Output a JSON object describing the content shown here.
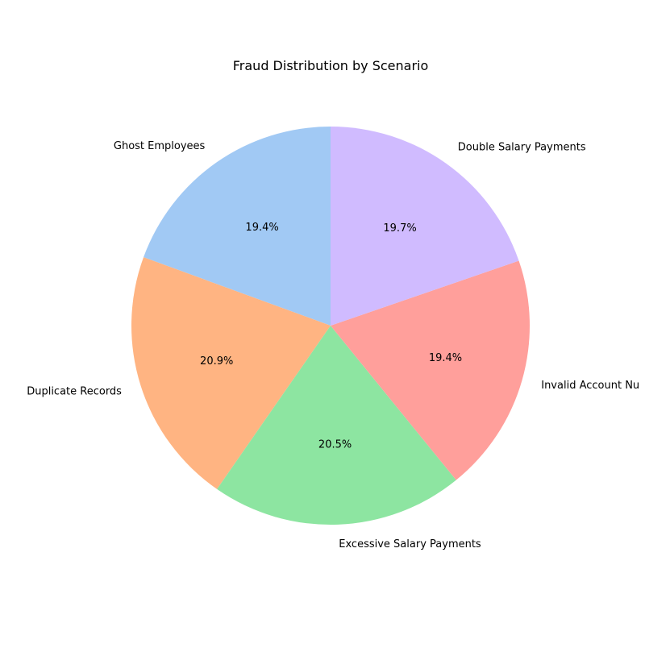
{
  "chart_data": {
    "type": "pie",
    "title": "Fraud Distribution by Scenario",
    "categories": [
      "Ghost Employees",
      "Duplicate Records",
      "Excessive Salary Payments",
      "Invalid Account Nu",
      "Double Salary Payments"
    ],
    "values": [
      19.4,
      20.9,
      20.5,
      19.4,
      19.7
    ],
    "percent_labels": [
      "19.4%",
      "20.9%",
      "20.5%",
      "19.4%",
      "19.7%"
    ],
    "colors": [
      "#a1c9f4",
      "#ffb482",
      "#8de5a1",
      "#ff9f9b",
      "#d0bbff"
    ],
    "start_angle_deg": 90,
    "direction": "counterclockwise"
  }
}
